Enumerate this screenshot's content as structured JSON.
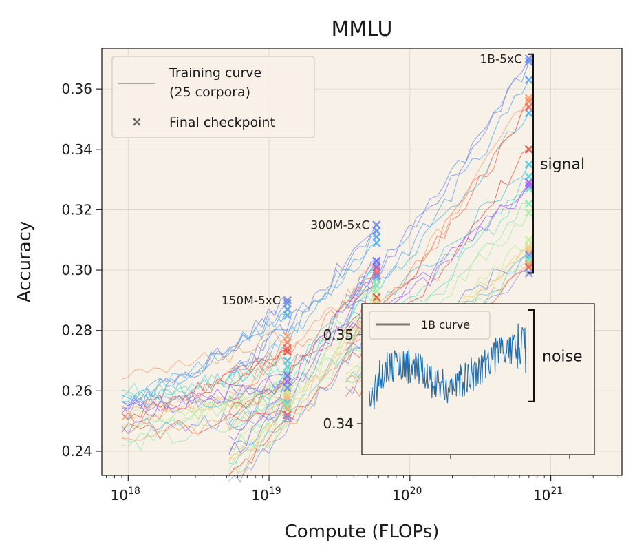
{
  "chart_data": {
    "type": "line",
    "title": "MMLU",
    "xlabel": "Compute (FLOPs)",
    "ylabel": "Accuracy",
    "xscale": "log",
    "xlim": [
      6.5e+17,
      3.2e+21
    ],
    "ylim": [
      0.232,
      0.3735
    ],
    "grid": true,
    "background": "#f8f1e7",
    "xticks": [
      {
        "value": 1e+18,
        "base": "10",
        "exp": "18"
      },
      {
        "value": 1e+19,
        "base": "10",
        "exp": "19"
      },
      {
        "value": 1e+20,
        "base": "10",
        "exp": "20"
      },
      {
        "value": 1e+21,
        "base": "10",
        "exp": "21"
      }
    ],
    "yticks": [
      {
        "value": 0.24,
        "label": "0.24"
      },
      {
        "value": 0.26,
        "label": "0.26"
      },
      {
        "value": 0.28,
        "label": "0.28"
      },
      {
        "value": 0.3,
        "label": "0.30"
      },
      {
        "value": 0.32,
        "label": "0.32"
      },
      {
        "value": 0.34,
        "label": "0.34"
      },
      {
        "value": 0.36,
        "label": "0.36"
      }
    ],
    "legend": {
      "placement": "top-left",
      "entries": [
        {
          "kind": "line",
          "label_line1": "Training curve",
          "label_line2": "(25 corpora)"
        },
        {
          "kind": "marker",
          "label_line1": "Final checkpoint",
          "label_line2": ""
        }
      ]
    },
    "model_groups": [
      {
        "label": "150M-5xC",
        "x_final": 1.35e+19
      },
      {
        "label": "300M-5xC",
        "x_final": 5.8e+19
      },
      {
        "label": "1B-5xC",
        "x_final": 7e+20
      }
    ],
    "n_corpora": 25,
    "series_colors": [
      "#6e7fe8",
      "#5a8df0",
      "#4f9ff2",
      "#46b1ee",
      "#41c3e3",
      "#4ad3d2",
      "#5fe0bf",
      "#7fe9ab",
      "#a0ee9a",
      "#bdeb8e",
      "#d6df86",
      "#e9cd80",
      "#f4b777",
      "#f89c6b",
      "#f87f5d",
      "#f1624f",
      "#e34b43",
      "#8b5cf6",
      "#a855f7",
      "#6f83ea",
      "#53cfd9",
      "#94e8a3",
      "#f0a56e",
      "#e8584a",
      "#7b8ff0"
    ],
    "series": [
      {
        "final": [
          0.29,
          0.315,
          0.37
        ]
      },
      {
        "final": [
          0.289,
          0.313,
          0.369
        ]
      },
      {
        "final": [
          0.287,
          0.311,
          0.363
        ]
      },
      {
        "final": [
          0.285,
          0.309,
          0.352
        ]
      },
      {
        "final": [
          0.27,
          0.303,
          0.335
        ]
      },
      {
        "final": [
          0.268,
          0.302,
          0.331
        ]
      },
      {
        "final": [
          0.266,
          0.297,
          0.327
        ]
      },
      {
        "final": [
          0.264,
          0.295,
          0.322
        ]
      },
      {
        "final": [
          0.262,
          0.293,
          0.319
        ]
      },
      {
        "final": [
          0.26,
          0.291,
          0.31
        ]
      },
      {
        "final": [
          0.259,
          0.29,
          0.308
        ]
      },
      {
        "final": [
          0.258,
          0.289,
          0.307
        ]
      },
      {
        "final": [
          0.257,
          0.288,
          0.306
        ]
      },
      {
        "final": [
          0.278,
          0.301,
          0.357
        ]
      },
      {
        "final": [
          0.276,
          0.3,
          0.356
        ]
      },
      {
        "final": [
          0.274,
          0.299,
          0.354
        ]
      },
      {
        "final": [
          0.273,
          0.291,
          0.34
        ]
      },
      {
        "final": [
          0.265,
          0.303,
          0.329
        ]
      },
      {
        "final": [
          0.263,
          0.301,
          0.328
        ]
      },
      {
        "final": [
          0.261,
          0.298,
          0.305
        ]
      },
      {
        "final": [
          0.256,
          0.287,
          0.304
        ]
      },
      {
        "final": [
          0.255,
          0.286,
          0.303
        ]
      },
      {
        "final": [
          0.254,
          0.285,
          0.302
        ]
      },
      {
        "final": [
          0.252,
          0.284,
          0.301
        ]
      },
      {
        "final": [
          0.251,
          0.283,
          0.299
        ]
      }
    ],
    "signal_bracket": {
      "label": "signal",
      "y_low": 0.299,
      "y_high": 0.3715
    },
    "inset": {
      "legend_label": "1B curve",
      "line_color": "#1f6fb0",
      "ylim": [
        0.3365,
        0.3535
      ],
      "yticks": [
        {
          "value": 0.34,
          "label": "0.34"
        },
        {
          "value": 0.35,
          "label": "0.35"
        }
      ],
      "noise_label": "noise",
      "noise_range": [
        0.3425,
        0.3528
      ]
    }
  }
}
